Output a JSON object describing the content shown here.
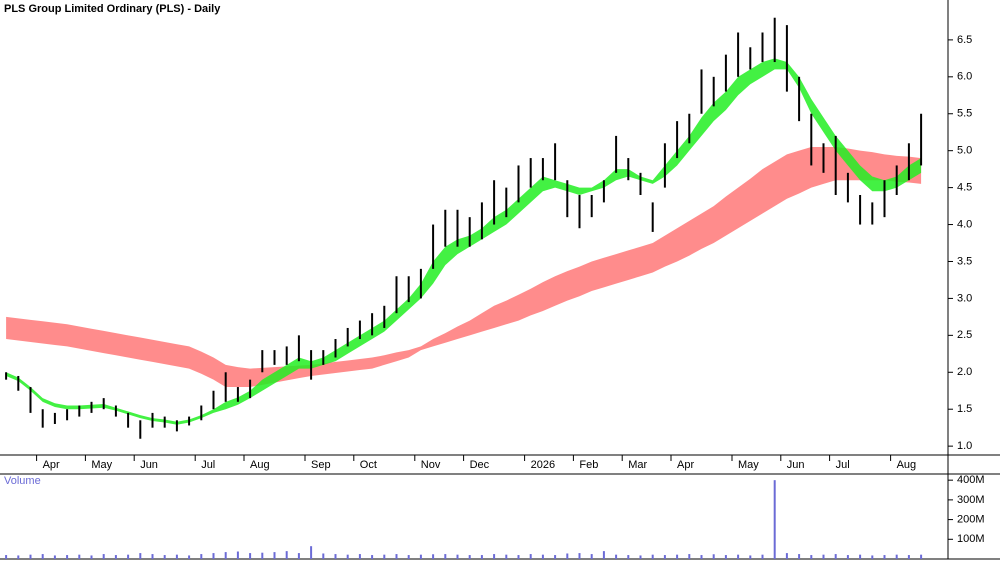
{
  "chart_data": [
    {
      "type": "price-bands",
      "title": "PLS Group Limited Ordinary (PLS) - Daily",
      "categories": [
        null,
        null,
        null,
        "Apr",
        null,
        null,
        null,
        "May",
        null,
        null,
        null,
        "Jun",
        null,
        null,
        null,
        null,
        "Jul",
        null,
        null,
        null,
        "Aug",
        null,
        null,
        null,
        null,
        "Sep",
        null,
        null,
        null,
        "Oct",
        null,
        null,
        null,
        null,
        "Nov",
        null,
        null,
        null,
        "Dec",
        null,
        null,
        null,
        null,
        "2026",
        null,
        null,
        null,
        "Feb",
        null,
        null,
        null,
        "Mar",
        null,
        null,
        null,
        "Apr",
        null,
        null,
        null,
        null,
        "May",
        null,
        null,
        null,
        "Jun",
        null,
        null,
        null,
        "Jul",
        null,
        null,
        null,
        null,
        "Aug",
        null,
        null
      ],
      "high": [
        2.0,
        1.95,
        1.8,
        1.5,
        1.45,
        1.5,
        1.55,
        1.6,
        1.65,
        1.55,
        1.45,
        1.35,
        1.45,
        1.4,
        1.35,
        1.4,
        1.55,
        1.75,
        2.0,
        1.8,
        1.9,
        2.3,
        2.3,
        2.35,
        2.5,
        2.3,
        2.3,
        2.45,
        2.6,
        2.7,
        2.8,
        2.9,
        3.3,
        3.3,
        3.4,
        4.0,
        4.2,
        4.2,
        4.1,
        4.3,
        4.6,
        4.5,
        4.8,
        4.9,
        4.9,
        5.1,
        4.6,
        4.4,
        4.4,
        4.6,
        5.2,
        4.9,
        4.7,
        4.3,
        5.1,
        5.4,
        5.5,
        6.1,
        6.0,
        6.3,
        6.6,
        6.4,
        6.6,
        6.8,
        6.7,
        6.0,
        5.5,
        5.1,
        5.2,
        4.7,
        4.4,
        4.3,
        4.6,
        4.8,
        5.1,
        5.5
      ],
      "low": [
        1.9,
        1.75,
        1.45,
        1.25,
        1.3,
        1.35,
        1.4,
        1.45,
        1.5,
        1.4,
        1.25,
        1.1,
        1.25,
        1.25,
        1.2,
        1.28,
        1.35,
        1.5,
        1.6,
        1.6,
        1.65,
        2.0,
        2.1,
        2.1,
        2.15,
        1.9,
        2.1,
        2.2,
        2.35,
        2.45,
        2.5,
        2.6,
        2.8,
        2.95,
        3.0,
        3.4,
        3.7,
        3.7,
        3.7,
        3.8,
        4.0,
        4.1,
        4.3,
        4.5,
        4.6,
        4.6,
        4.1,
        3.95,
        4.1,
        4.3,
        4.7,
        4.6,
        4.4,
        3.9,
        4.5,
        4.9,
        5.1,
        5.5,
        5.6,
        5.8,
        6.0,
        6.1,
        6.2,
        6.2,
        5.8,
        5.4,
        4.8,
        4.7,
        4.4,
        4.3,
        4.0,
        4.0,
        4.1,
        4.4,
        4.6,
        4.8
      ],
      "bands": [
        {
          "color": "#ff7f7f",
          "upper": [
            2.75,
            2.73,
            2.71,
            2.69,
            2.67,
            2.65,
            2.62,
            2.59,
            2.56,
            2.53,
            2.5,
            2.47,
            2.44,
            2.41,
            2.38,
            2.35,
            2.28,
            2.2,
            2.1,
            2.07,
            2.05,
            2.06,
            2.07,
            2.08,
            2.09,
            2.1,
            2.12,
            2.14,
            2.16,
            2.18,
            2.2,
            2.23,
            2.27,
            2.3,
            2.35,
            2.45,
            2.53,
            2.62,
            2.7,
            2.8,
            2.9,
            2.97,
            3.05,
            3.13,
            3.22,
            3.3,
            3.37,
            3.43,
            3.5,
            3.55,
            3.6,
            3.65,
            3.7,
            3.75,
            3.85,
            3.95,
            4.05,
            4.15,
            4.25,
            4.38,
            4.5,
            4.62,
            4.75,
            4.85,
            4.95,
            5.0,
            5.05,
            5.05,
            5.05,
            5.03,
            5.0,
            4.98,
            4.95,
            4.93,
            4.92,
            4.9
          ],
          "lower": [
            2.45,
            2.43,
            2.41,
            2.39,
            2.37,
            2.35,
            2.32,
            2.29,
            2.26,
            2.23,
            2.2,
            2.17,
            2.14,
            2.11,
            2.08,
            2.05,
            1.98,
            1.9,
            1.8,
            1.8,
            1.8,
            1.83,
            1.86,
            1.89,
            1.92,
            1.95,
            1.97,
            1.99,
            2.01,
            2.03,
            2.05,
            2.1,
            2.15,
            2.2,
            2.3,
            2.35,
            2.4,
            2.45,
            2.5,
            2.55,
            2.6,
            2.65,
            2.7,
            2.77,
            2.83,
            2.9,
            2.97,
            3.03,
            3.1,
            3.15,
            3.2,
            3.25,
            3.3,
            3.35,
            3.43,
            3.5,
            3.58,
            3.67,
            3.75,
            3.85,
            3.95,
            4.05,
            4.15,
            4.25,
            4.35,
            4.42,
            4.5,
            4.55,
            4.6,
            4.6,
            4.6,
            4.6,
            4.6,
            4.58,
            4.57,
            4.55
          ],
          "segment_colors": [
            "#ff7f7f",
            "#f26b21",
            "#3cb371"
          ]
        },
        {
          "color": "#22ee22",
          "upper": [
            2.0,
            1.93,
            1.8,
            1.65,
            1.58,
            1.55,
            1.55,
            1.56,
            1.57,
            1.52,
            1.47,
            1.42,
            1.38,
            1.36,
            1.33,
            1.36,
            1.42,
            1.5,
            1.6,
            1.66,
            1.75,
            1.9,
            2.0,
            2.1,
            2.2,
            2.15,
            2.2,
            2.3,
            2.4,
            2.5,
            2.6,
            2.7,
            2.85,
            3.0,
            3.2,
            3.5,
            3.7,
            3.8,
            3.85,
            3.95,
            4.1,
            4.2,
            4.35,
            4.5,
            4.65,
            4.6,
            4.55,
            4.5,
            4.5,
            4.6,
            4.75,
            4.75,
            4.65,
            4.6,
            4.8,
            5.0,
            5.2,
            5.45,
            5.65,
            5.8,
            6.0,
            6.1,
            6.2,
            6.25,
            6.2,
            6.0,
            5.7,
            5.45,
            5.2,
            5.0,
            4.8,
            4.65,
            4.6,
            4.65,
            4.8,
            4.9
          ],
          "lower": [
            1.95,
            1.88,
            1.75,
            1.6,
            1.53,
            1.5,
            1.5,
            1.51,
            1.52,
            1.48,
            1.43,
            1.38,
            1.34,
            1.32,
            1.29,
            1.32,
            1.38,
            1.45,
            1.5,
            1.56,
            1.65,
            1.75,
            1.85,
            1.95,
            2.05,
            2.05,
            2.1,
            2.15,
            2.25,
            2.35,
            2.45,
            2.55,
            2.7,
            2.85,
            3.0,
            3.2,
            3.45,
            3.6,
            3.7,
            3.8,
            3.9,
            4.0,
            4.15,
            4.3,
            4.45,
            4.5,
            4.45,
            4.4,
            4.45,
            4.5,
            4.6,
            4.65,
            4.6,
            4.55,
            4.65,
            4.8,
            5.0,
            5.2,
            5.4,
            5.55,
            5.75,
            5.9,
            6.0,
            6.1,
            6.1,
            5.85,
            5.5,
            5.25,
            5.0,
            4.8,
            4.6,
            4.45,
            4.45,
            4.5,
            4.6,
            4.7
          ]
        }
      ],
      "bar_color": "#000000",
      "ylim": [
        0.88,
        7.04
      ],
      "yticks": [
        {
          "value": 1,
          "label": "1.0"
        },
        1.5,
        {
          "value": 2,
          "label": "2.0"
        },
        2.5,
        {
          "value": 3,
          "label": "3.0"
        },
        3.5,
        {
          "value": 4,
          "label": "4.0"
        },
        4.5,
        {
          "value": 5,
          "label": "5.0"
        },
        5.5,
        {
          "value": 6,
          "label": "6.0"
        },
        6.5
      ]
    },
    {
      "type": "bar",
      "title": "Volume",
      "color": "#6b6bd6",
      "values": [
        20,
        18,
        22,
        25,
        18,
        20,
        22,
        18,
        25,
        20,
        22,
        30,
        25,
        20,
        22,
        18,
        25,
        30,
        35,
        38,
        30,
        32,
        35,
        40,
        30,
        65,
        28,
        25,
        22,
        25,
        20,
        22,
        25,
        20,
        22,
        24,
        25,
        22,
        20,
        20,
        25,
        22,
        20,
        25,
        22,
        20,
        28,
        30,
        25,
        40,
        22,
        20,
        18,
        22,
        20,
        22,
        25,
        20,
        24,
        20,
        22,
        18,
        22,
        400,
        30,
        25,
        20,
        22,
        25,
        20,
        22,
        18,
        20,
        22,
        20,
        22
      ],
      "ylim": [
        0,
        411
      ],
      "yticks": [
        {
          "value": 100,
          "label": "100M"
        },
        {
          "value": 200,
          "label": "200M"
        },
        {
          "value": 300,
          "label": "300M"
        },
        {
          "value": 400,
          "label": "400M"
        }
      ]
    }
  ]
}
